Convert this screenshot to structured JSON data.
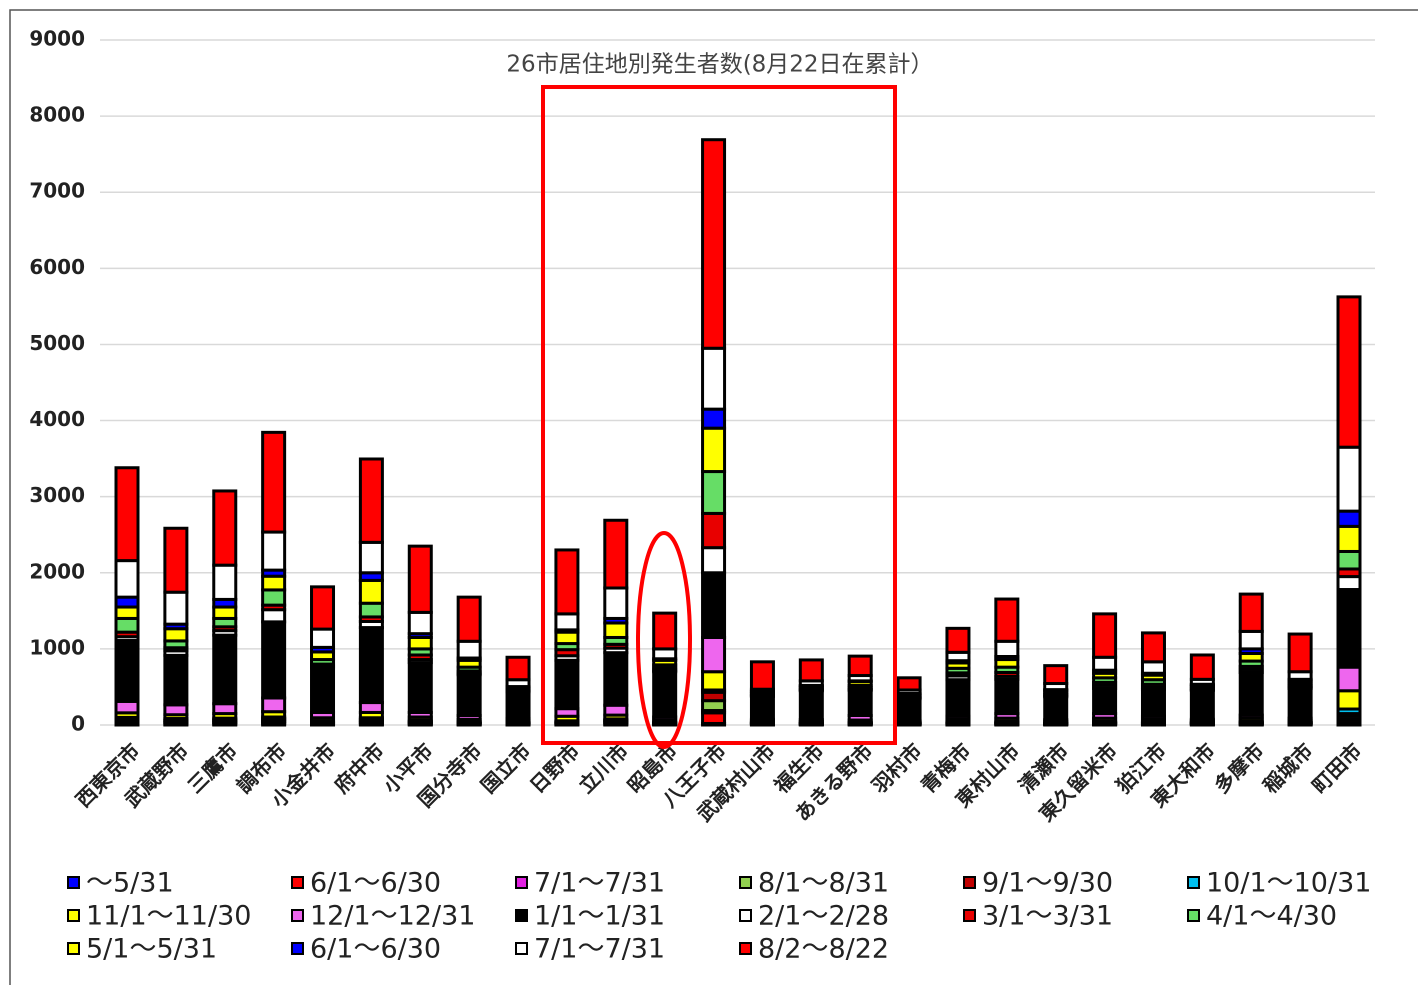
{
  "chart_data": {
    "type": "stacked_bar",
    "title": "26市居住地別発生者数(8月22日在累計）",
    "categories": [
      "西東京市",
      "武蔵野市",
      "三鷹市",
      "調布市",
      "小金井市",
      "府中市",
      "小平市",
      "国分寺市",
      "国立市",
      "日野市",
      "立川市",
      "昭島市",
      "八王子市",
      "武蔵村山市",
      "福生市",
      "あきる野市",
      "羽村市",
      "青梅市",
      "東村山市",
      "清瀬市",
      "東久留米市",
      "狛江市",
      "東大和市",
      "多摩市",
      "稲城市",
      "町田市"
    ],
    "ylim": [
      0,
      9000
    ],
    "yticks": [
      0,
      1000,
      2000,
      3000,
      4000,
      5000,
      6000,
      7000,
      8000,
      9000
    ],
    "grid": true,
    "legend": "bottom",
    "series": [
      {
        "name": "～5/31",
        "color": "#0000ff",
        "values": [
          10,
          10,
          10,
          15,
          5,
          10,
          5,
          5,
          5,
          5,
          10,
          5,
          20,
          5,
          5,
          5,
          5,
          5,
          5,
          5,
          5,
          5,
          5,
          5,
          5,
          20
        ]
      },
      {
        "name": "6/1～6/30",
        "color": "#ff0000",
        "values": [
          25,
          20,
          20,
          25,
          15,
          20,
          15,
          10,
          10,
          15,
          20,
          10,
          140,
          10,
          5,
          10,
          5,
          10,
          10,
          5,
          10,
          10,
          10,
          10,
          10,
          40
        ]
      },
      {
        "name": "7/1～7/31",
        "color": "#e020e0",
        "values": [
          10,
          10,
          10,
          10,
          5,
          10,
          10,
          5,
          5,
          5,
          10,
          5,
          30,
          5,
          5,
          5,
          5,
          5,
          5,
          5,
          5,
          5,
          5,
          5,
          5,
          20
        ]
      },
      {
        "name": "8/1～8/31",
        "color": "#92d050",
        "values": [
          20,
          15,
          20,
          20,
          10,
          20,
          10,
          10,
          5,
          10,
          15,
          5,
          130,
          5,
          5,
          5,
          5,
          10,
          10,
          5,
          10,
          10,
          5,
          10,
          10,
          40
        ]
      },
      {
        "name": "9/1～9/30",
        "color": "#c00000",
        "values": [
          15,
          10,
          10,
          15,
          10,
          15,
          10,
          5,
          5,
          10,
          10,
          5,
          110,
          5,
          5,
          5,
          5,
          5,
          10,
          5,
          10,
          5,
          5,
          10,
          5,
          30
        ]
      },
      {
        "name": "10/1～10/31",
        "color": "#00c0f0",
        "values": [
          20,
          20,
          20,
          20,
          10,
          20,
          15,
          10,
          5,
          10,
          15,
          5,
          30,
          5,
          5,
          5,
          5,
          10,
          10,
          5,
          10,
          10,
          5,
          10,
          5,
          60
        ]
      },
      {
        "name": "11/1～11/30",
        "color": "#ffff00",
        "values": [
          60,
          50,
          60,
          70,
          40,
          70,
          40,
          30,
          20,
          60,
          50,
          30,
          240,
          20,
          15,
          30,
          10,
          30,
          40,
          20,
          40,
          30,
          20,
          40,
          20,
          240
        ]
      },
      {
        "name": "12/1～12/31",
        "color": "#ee66ee",
        "values": [
          150,
          130,
          130,
          180,
          70,
          130,
          60,
          50,
          30,
          100,
          130,
          40,
          450,
          20,
          25,
          60,
          15,
          40,
          60,
          20,
          60,
          40,
          20,
          40,
          30,
          310
        ]
      },
      {
        "name": "1/1～1/31",
        "color": "#000000",
        "values": [
          800,
          650,
          900,
          1000,
          585,
          985,
          655,
          535,
          350,
          635,
          690,
          595,
          850,
          300,
          380,
          330,
          290,
          480,
          450,
          300,
          330,
          350,
          380,
          560,
          390,
          1020
        ]
      },
      {
        "name": "2/1～2/28",
        "color": "#ffffff",
        "values": [
          50,
          60,
          60,
          160,
          20,
          80,
          40,
          20,
          10,
          60,
          60,
          20,
          330,
          10,
          10,
          15,
          10,
          50,
          40,
          15,
          40,
          30,
          10,
          40,
          20,
          170
        ]
      },
      {
        "name": "3/1～3/31",
        "color": "#e80000",
        "values": [
          60,
          40,
          50,
          60,
          30,
          60,
          60,
          30,
          10,
          80,
          50,
          30,
          450,
          10,
          10,
          20,
          10,
          40,
          50,
          20,
          40,
          40,
          20,
          40,
          20,
          100
        ]
      },
      {
        "name": "4/1～4/30",
        "color": "#66dd66",
        "values": [
          180,
          90,
          110,
          200,
          60,
          180,
          80,
          50,
          20,
          80,
          90,
          40,
          550,
          20,
          20,
          30,
          20,
          60,
          70,
          20,
          60,
          60,
          20,
          70,
          30,
          230
        ]
      },
      {
        "name": "5/1～5/31",
        "color": "#ffff00",
        "values": [
          150,
          160,
          150,
          180,
          100,
          300,
          150,
          90,
          20,
          150,
          190,
          60,
          570,
          20,
          20,
          50,
          20,
          70,
          100,
          30,
          60,
          60,
          20,
          100,
          30,
          330
        ]
      },
      {
        "name": "6/1～6/30",
        "color": "#0000ff",
        "values": [
          130,
          60,
          100,
          80,
          60,
          100,
          50,
          30,
          10,
          30,
          60,
          20,
          250,
          10,
          10,
          10,
          10,
          30,
          40,
          10,
          40,
          25,
          10,
          60,
          20,
          200
        ]
      },
      {
        "name": "7/1～7/31",
        "color": "#ffffff",
        "values": [
          480,
          420,
          450,
          500,
          240,
          400,
          280,
          220,
          90,
          210,
          400,
          130,
          800,
          25,
          60,
          70,
          45,
          110,
          200,
          80,
          170,
          150,
          65,
          230,
          100,
          840
        ]
      },
      {
        "name": "8/2～8/22",
        "color": "#ff0000",
        "values": [
          1220,
          840,
          975,
          1310,
          555,
          1095,
          870,
          580,
          295,
          840,
          890,
          470,
          2740,
          360,
          275,
          255,
          160,
          315,
          555,
          235,
          570,
          380,
          320,
          490,
          495,
          1975
        ]
      }
    ]
  }
}
